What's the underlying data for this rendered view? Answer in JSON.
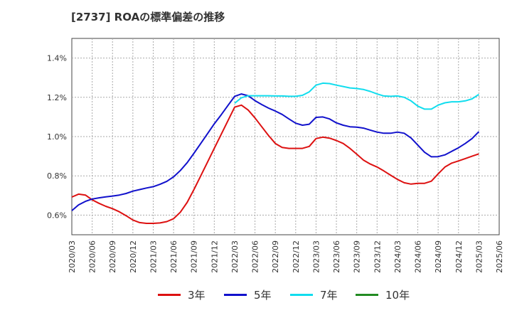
{
  "chart_data": {
    "type": "line",
    "title": "[2737]  ROAの標準偏差の推移",
    "xlabel": "",
    "ylabel": "",
    "x_ticks": [
      "2020/03",
      "2020/06",
      "2020/09",
      "2020/12",
      "2021/03",
      "2021/06",
      "2021/09",
      "2021/12",
      "2022/03",
      "2022/06",
      "2022/09",
      "2022/12",
      "2023/03",
      "2023/06",
      "2023/09",
      "2023/12",
      "2024/03",
      "2024/06",
      "2024/09",
      "2024/12",
      "2025/03",
      "2025/06"
    ],
    "y_ticks": [
      "0.6%",
      "0.8%",
      "1.0%",
      "1.2%",
      "1.4%"
    ],
    "ylim": [
      0.5,
      1.5
    ],
    "grid": true,
    "legend_position": "bottom",
    "series": [
      {
        "name": "3年",
        "color": "#dd1111",
        "x": [
          "2020/03",
          "2020/04",
          "2020/05",
          "2020/06",
          "2020/07",
          "2020/08",
          "2020/09",
          "2020/10",
          "2020/11",
          "2020/12",
          "2021/01",
          "2021/02",
          "2021/03",
          "2021/04",
          "2021/05",
          "2021/06",
          "2021/07",
          "2021/08",
          "2021/09",
          "2021/10",
          "2021/11",
          "2021/12",
          "2022/01",
          "2022/02",
          "2022/03",
          "2022/04",
          "2022/05",
          "2022/06",
          "2022/07",
          "2022/08",
          "2022/09",
          "2022/10",
          "2022/11",
          "2022/12",
          "2023/01",
          "2023/02",
          "2023/03",
          "2023/04",
          "2023/05",
          "2023/06",
          "2023/07",
          "2023/08",
          "2023/09",
          "2023/10",
          "2023/11",
          "2023/12",
          "2024/01",
          "2024/02",
          "2024/03",
          "2024/04",
          "2024/05",
          "2024/06",
          "2024/07",
          "2024/08",
          "2024/09",
          "2024/10",
          "2024/11",
          "2024/12",
          "2025/01",
          "2025/02",
          "2025/03"
        ],
        "values": [
          0.692,
          0.707,
          0.702,
          0.678,
          0.66,
          0.645,
          0.633,
          0.617,
          0.597,
          0.575,
          0.562,
          0.558,
          0.558,
          0.56,
          0.567,
          0.582,
          0.615,
          0.665,
          0.73,
          0.8,
          0.87,
          0.94,
          1.01,
          1.08,
          1.15,
          1.16,
          1.135,
          1.095,
          1.05,
          1.005,
          0.965,
          0.945,
          0.94,
          0.94,
          0.94,
          0.95,
          0.99,
          0.997,
          0.992,
          0.98,
          0.965,
          0.94,
          0.91,
          0.88,
          0.86,
          0.845,
          0.825,
          0.803,
          0.782,
          0.765,
          0.758,
          0.762,
          0.762,
          0.773,
          0.81,
          0.845,
          0.865,
          0.876,
          0.888,
          0.9,
          0.912
        ]
      },
      {
        "name": "5年",
        "color": "#1111cc",
        "x": [
          "2020/03",
          "2020/04",
          "2020/05",
          "2020/06",
          "2020/07",
          "2020/08",
          "2020/09",
          "2020/10",
          "2020/11",
          "2020/12",
          "2021/01",
          "2021/02",
          "2021/03",
          "2021/04",
          "2021/05",
          "2021/06",
          "2021/07",
          "2021/08",
          "2021/09",
          "2021/10",
          "2021/11",
          "2021/12",
          "2022/01",
          "2022/02",
          "2022/03",
          "2022/04",
          "2022/05",
          "2022/06",
          "2022/07",
          "2022/08",
          "2022/09",
          "2022/10",
          "2022/11",
          "2022/12",
          "2023/01",
          "2023/02",
          "2023/03",
          "2023/04",
          "2023/05",
          "2023/06",
          "2023/07",
          "2023/08",
          "2023/09",
          "2023/10",
          "2023/11",
          "2023/12",
          "2024/01",
          "2024/02",
          "2024/03",
          "2024/04",
          "2024/05",
          "2024/06",
          "2024/07",
          "2024/08",
          "2024/09",
          "2024/10",
          "2024/11",
          "2024/12",
          "2025/01",
          "2025/02",
          "2025/03"
        ],
        "values": [
          0.623,
          0.652,
          0.67,
          0.682,
          0.688,
          0.693,
          0.697,
          0.702,
          0.71,
          0.722,
          0.73,
          0.738,
          0.745,
          0.757,
          0.772,
          0.795,
          0.827,
          0.867,
          0.915,
          0.965,
          1.015,
          1.065,
          1.11,
          1.158,
          1.205,
          1.217,
          1.208,
          1.183,
          1.163,
          1.145,
          1.13,
          1.113,
          1.09,
          1.068,
          1.058,
          1.063,
          1.098,
          1.1,
          1.09,
          1.07,
          1.058,
          1.05,
          1.048,
          1.043,
          1.033,
          1.023,
          1.017,
          1.017,
          1.023,
          1.017,
          0.993,
          0.957,
          0.92,
          0.897,
          0.898,
          0.907,
          0.925,
          0.943,
          0.965,
          0.99,
          1.025
        ]
      },
      {
        "name": "7年",
        "color": "#11ddee",
        "x": [
          "2022/03",
          "2022/04",
          "2022/05",
          "2022/06",
          "2022/07",
          "2022/08",
          "2022/09",
          "2022/10",
          "2022/11",
          "2022/12",
          "2023/01",
          "2023/02",
          "2023/03",
          "2023/04",
          "2023/05",
          "2023/06",
          "2023/07",
          "2023/08",
          "2023/09",
          "2023/10",
          "2023/11",
          "2023/12",
          "2024/01",
          "2024/02",
          "2024/03",
          "2024/04",
          "2024/05",
          "2024/06",
          "2024/07",
          "2024/08",
          "2024/09",
          "2024/10",
          "2024/11",
          "2024/12",
          "2025/01",
          "2025/02",
          "2025/03"
        ],
        "values": [
          1.17,
          1.198,
          1.208,
          1.208,
          1.208,
          1.208,
          1.207,
          1.207,
          1.205,
          1.205,
          1.21,
          1.228,
          1.262,
          1.272,
          1.27,
          1.262,
          1.255,
          1.248,
          1.245,
          1.24,
          1.23,
          1.217,
          1.207,
          1.205,
          1.207,
          1.2,
          1.182,
          1.155,
          1.14,
          1.14,
          1.16,
          1.172,
          1.177,
          1.177,
          1.182,
          1.192,
          1.215
        ]
      },
      {
        "name": "10年",
        "color": "#228b22",
        "x": [],
        "values": []
      }
    ]
  }
}
